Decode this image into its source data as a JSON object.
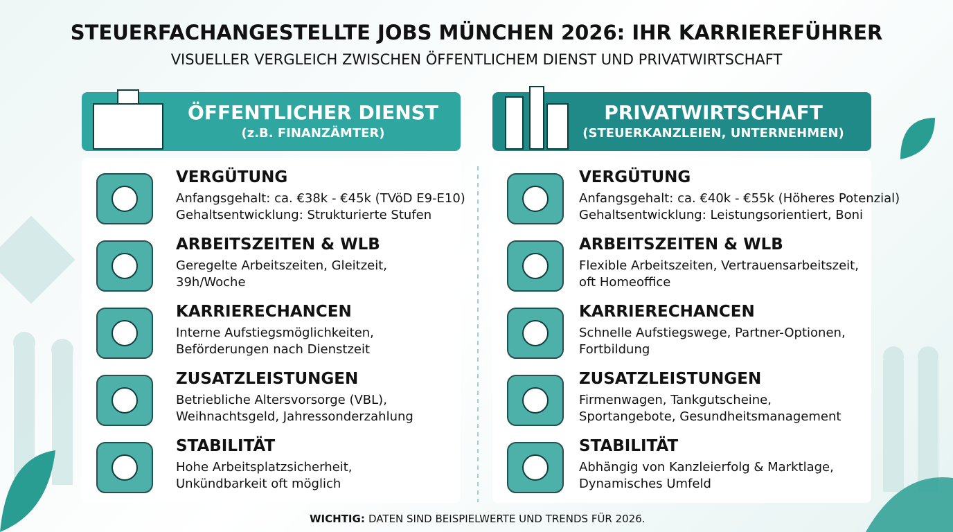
{
  "header": {
    "title": "STEUERFACHANGESTELLTE JOBS MÜNCHEN 2026: IHR KARRIEREFÜHRER",
    "subtitle": "VISUELLER VERGLEICH ZWISCHEN ÖFFENTLICHEM DIENST UND PRIVATWIRTSCHAFT"
  },
  "columns": [
    {
      "title": "ÖFFENTLICHER DIENST",
      "subtitle": "(z.B. FINANZÄMTER)",
      "sections": [
        {
          "heading": "VERGÜTUNG",
          "lines": [
            "Anfangsgehalt: ca. €38k - €45k (TVöD E9-E10)",
            "Gehaltsentwicklung: Strukturierte Stufen"
          ]
        },
        {
          "heading": "ARBEITSZEITEN & WLB",
          "lines": [
            "Geregelte Arbeitszeiten, Gleitzeit,",
            "39h/Woche"
          ]
        },
        {
          "heading": "KARRIERECHANCEN",
          "lines": [
            "Interne Aufstiegsmöglichkeiten,",
            "Beförderungen nach Dienstzeit"
          ]
        },
        {
          "heading": "ZUSATZLEISTUNGEN",
          "lines": [
            "Betriebliche Altersvorsorge (VBL),",
            "Weihnachtsgeld, Jahressonderzahlung"
          ]
        },
        {
          "heading": "STABILITÄT",
          "lines": [
            "Hohe Arbeitsplatzsicherheit,",
            "Unkündbarkeit oft möglich"
          ]
        }
      ]
    },
    {
      "title": "PRIVATWIRTSCHAFT",
      "subtitle": "(STEUERKANZLEIEN, UNTERNEHMEN)",
      "sections": [
        {
          "heading": "VERGÜTUNG",
          "lines": [
            "Anfangsgehalt: ca. €40k - €55k (Höheres Potenzial)",
            "Gehaltsentwicklung: Leistungsorientiert, Boni"
          ]
        },
        {
          "heading": "ARBEITSZEITEN & WLB",
          "lines": [
            "Flexible Arbeitszeiten, Vertrauensarbeitszeit,",
            "oft Homeoffice"
          ]
        },
        {
          "heading": "KARRIERECHANCEN",
          "lines": [
            "Schnelle Aufstiegswege, Partner-Optionen,",
            "Fortbildung"
          ]
        },
        {
          "heading": "ZUSATZLEISTUNGEN",
          "lines": [
            "Firmenwagen, Tankgutscheine,",
            "Sportangebote, Gesundheitsmanagement"
          ]
        },
        {
          "heading": "STABILITÄT",
          "lines": [
            "Abhängig von Kanzleierfolg & Marktlage,",
            "Dynamisches Umfeld"
          ]
        }
      ]
    }
  ],
  "footer": {
    "label": "WICHTIG:",
    "text": "DATEN SIND BEISPIELWERTE UND TRENDS FÜR 2026."
  }
}
